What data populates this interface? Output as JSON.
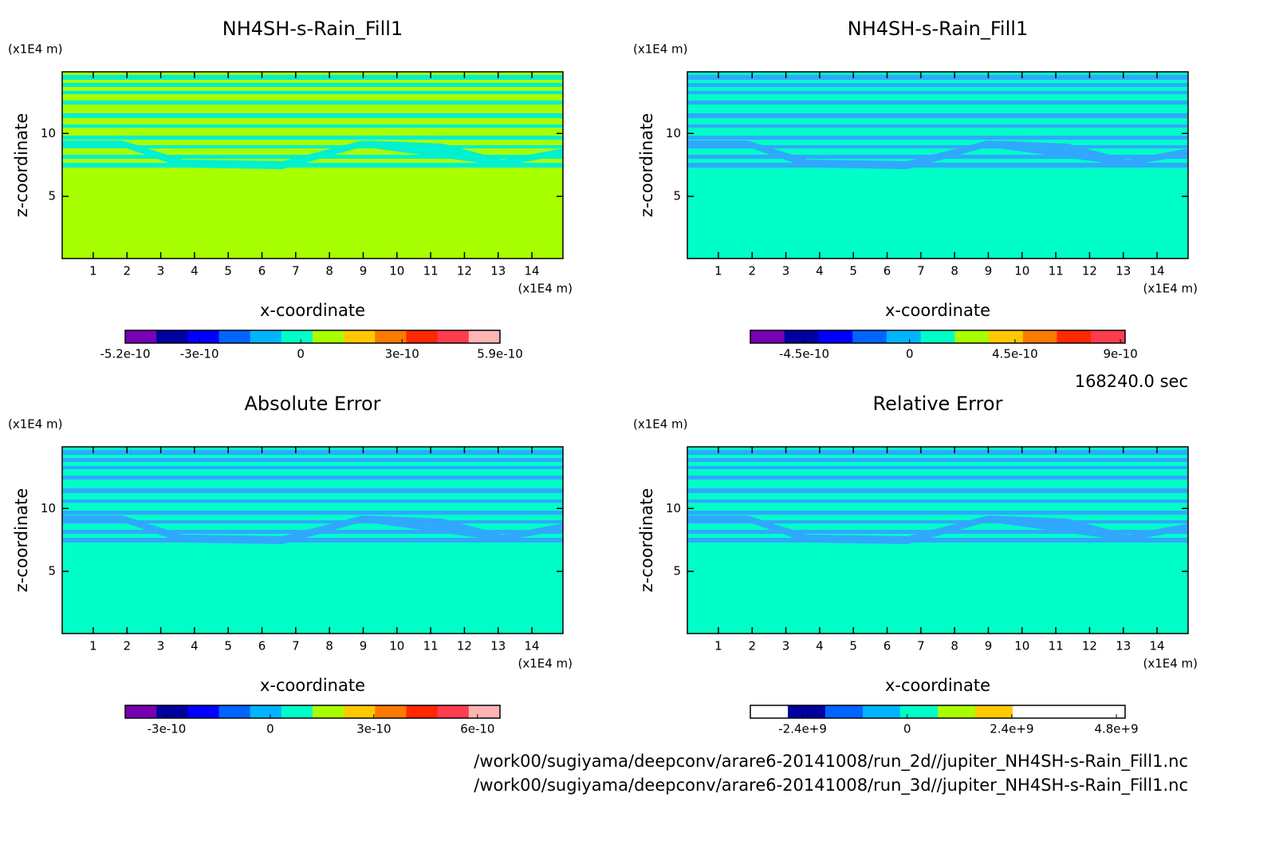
{
  "time_label": "168240.0 sec",
  "footer": [
    "/work00/sugiyama/deepconv/arare6-20141008/run_2d//jupiter_NH4SH-s-Rain_Fill1.nc",
    "/work00/sugiyama/deepconv/arare6-20141008/run_3d//jupiter_NH4SH-s-Rain_Fill1.nc"
  ],
  "chart_data": [
    {
      "type": "contour",
      "title": "NH4SH-s-Rain_Fill1",
      "xlabel": "x-coordinate",
      "ylabel": "z-coordinate",
      "xunit": "(x1E4 m)",
      "yunit": "(x1E4 m)",
      "xlim": [
        0.08,
        14.92
      ],
      "ylim": [
        0.06,
        14.9
      ],
      "xticks": [
        1,
        2,
        3,
        4,
        5,
        6,
        7,
        8,
        9,
        10,
        11,
        12,
        13,
        14
      ],
      "yticks": [
        5,
        10
      ],
      "field_color": "#a8ff00",
      "band_color": "#00f0d0",
      "clim": [
        -5.2e-10,
        5.9e-10
      ],
      "cticks": [
        -5.2e-10,
        -3e-10,
        0,
        3e-10,
        5.9e-10
      ],
      "colors": [
        "#7800b4",
        "#0000a0",
        "#0000ff",
        "#0064ff",
        "#00b4ff",
        "#00ffc8",
        "#a8ff00",
        "#ffc800",
        "#ff7800",
        "#ff2800",
        "#ff3c50",
        "#ffb4b4"
      ]
    },
    {
      "type": "contour",
      "title": "NH4SH-s-Rain_Fill1",
      "xlabel": "x-coordinate",
      "ylabel": "z-coordinate",
      "xunit": "(x1E4 m)",
      "yunit": "(x1E4 m)",
      "xlim": [
        0.08,
        14.92
      ],
      "ylim": [
        0.06,
        14.9
      ],
      "xticks": [
        1,
        2,
        3,
        4,
        5,
        6,
        7,
        8,
        9,
        10,
        11,
        12,
        13,
        14
      ],
      "yticks": [
        5,
        10
      ],
      "field_color": "#00ffc8",
      "band_color": "#30a8ff",
      "clim": [
        -6.8e-10,
        9.2e-10
      ],
      "cticks": [
        -4.5e-10,
        0,
        4.5e-10,
        9e-10
      ],
      "colors": [
        "#7800b4",
        "#0000a0",
        "#0000ff",
        "#0064ff",
        "#00b4ff",
        "#00ffc8",
        "#a8ff00",
        "#ffc800",
        "#ff7800",
        "#ff2800",
        "#ff3c50"
      ]
    },
    {
      "type": "contour",
      "title": "Absolute Error",
      "xlabel": "x-coordinate",
      "ylabel": "z-coordinate",
      "xunit": "(x1E4 m)",
      "yunit": "(x1E4 m)",
      "xlim": [
        0.08,
        14.92
      ],
      "ylim": [
        0.06,
        14.9
      ],
      "xticks": [
        1,
        2,
        3,
        4,
        5,
        6,
        7,
        8,
        9,
        10,
        11,
        12,
        13,
        14
      ],
      "yticks": [
        5,
        10
      ],
      "field_color": "#00ffc8",
      "band_color": "#30a8ff",
      "clim": [
        -4.2e-10,
        6.65e-10
      ],
      "cticks": [
        -3e-10,
        0,
        3e-10,
        6e-10
      ],
      "colors": [
        "#7800b4",
        "#0000a0",
        "#0000ff",
        "#0064ff",
        "#00b4ff",
        "#00ffc8",
        "#a8ff00",
        "#ffc800",
        "#ff7800",
        "#ff2800",
        "#ff3c50",
        "#ffb4b4"
      ]
    },
    {
      "type": "contour",
      "title": "Relative Error",
      "xlabel": "x-coordinate",
      "ylabel": "z-coordinate",
      "xunit": "(x1E4 m)",
      "yunit": "(x1E4 m)",
      "xlim": [
        0.08,
        14.92
      ],
      "ylim": [
        0.06,
        14.9
      ],
      "xticks": [
        1,
        2,
        3,
        4,
        5,
        6,
        7,
        8,
        9,
        10,
        11,
        12,
        13,
        14
      ],
      "yticks": [
        5,
        10
      ],
      "field_color": "#00ffc8",
      "band_color": "#30a8ff",
      "clim": [
        -3600000000.0,
        5000000000.0
      ],
      "cticks": [
        {
          "value": -2400000000.0,
          "label": "-2.4e+9"
        },
        0,
        {
          "value": 2400000000.0,
          "label": "2.4e+9"
        },
        {
          "value": 4800000000.0,
          "label": "4.8e+9"
        }
      ],
      "colors": [
        "#ffffff",
        "#0000a0",
        "#0064ff",
        "#00b4ff",
        "#00ffc8",
        "#a8ff00",
        "#ffc800",
        "#ffffff",
        "#ffffff",
        "#ffffff"
      ]
    }
  ]
}
